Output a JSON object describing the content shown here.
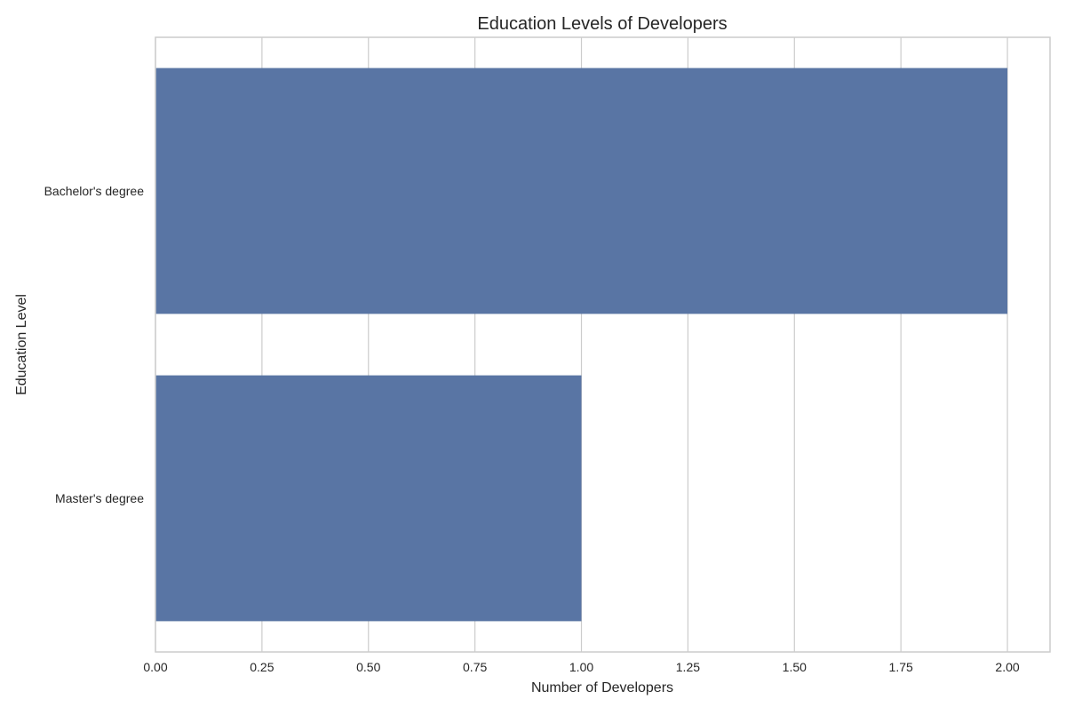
{
  "chart_data": {
    "type": "bar",
    "orientation": "horizontal",
    "title": "Education Levels of Developers",
    "xlabel": "Number of Developers",
    "ylabel": "Education Level",
    "categories": [
      "Bachelor's degree",
      "Master's degree"
    ],
    "values": [
      2,
      1
    ],
    "xlim": [
      0,
      2.1
    ],
    "xticks": [
      "0.00",
      "0.25",
      "0.50",
      "0.75",
      "1.00",
      "1.25",
      "1.50",
      "1.75",
      "2.00"
    ],
    "grid": true,
    "legend": "none",
    "colors": {
      "bar": "#5975a4",
      "grid": "#cccccc",
      "text": "#262626",
      "background": "#ffffff"
    }
  }
}
